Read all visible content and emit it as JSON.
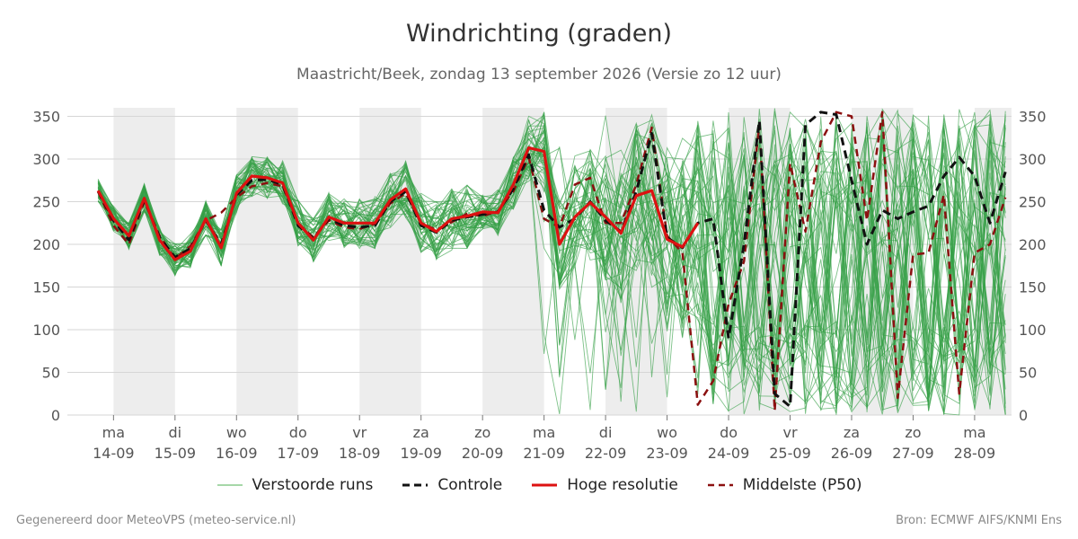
{
  "title": "Windrichting (graden)",
  "subtitle": "Maastricht/Beek, zondag 13 september 2026 (Versie zo 12 uur)",
  "footer": {
    "left": "Gegenereerd door MeteoVPS (meteo-service.nl)",
    "right": "Bron: ECMWF AIFS/KNMI Ens"
  },
  "legend": [
    {
      "key": "ens",
      "label": "Verstoorde runs",
      "color": "#4caf50",
      "style": "thin"
    },
    {
      "key": "control",
      "label": "Controle",
      "color": "#111111",
      "style": "dashed"
    },
    {
      "key": "hires",
      "label": "Hoge resolutie",
      "color": "#dd1111",
      "style": "solid"
    },
    {
      "key": "median",
      "label": "Middelste (P50)",
      "color": "#8b1010",
      "style": "dashed"
    }
  ],
  "chart_data": {
    "type": "line",
    "title": "Windrichting (graden)",
    "x_unit": "days since 14-09 00:00",
    "xlim": [
      -0.75,
      14.6
    ],
    "ylim": [
      0,
      360
    ],
    "yticks": [
      0,
      50,
      100,
      150,
      200,
      250,
      300,
      350
    ],
    "grid": true,
    "legend_position": "bottom",
    "x_ticks": [
      {
        "x": 0,
        "day": "ma",
        "date": "14-09"
      },
      {
        "x": 1,
        "day": "di",
        "date": "15-09"
      },
      {
        "x": 2,
        "day": "wo",
        "date": "16-09"
      },
      {
        "x": 3,
        "day": "do",
        "date": "17-09"
      },
      {
        "x": 4,
        "day": "vr",
        "date": "18-09"
      },
      {
        "x": 5,
        "day": "za",
        "date": "19-09"
      },
      {
        "x": 6,
        "day": "zo",
        "date": "20-09"
      },
      {
        "x": 7,
        "day": "ma",
        "date": "21-09"
      },
      {
        "x": 8,
        "day": "di",
        "date": "22-09"
      },
      {
        "x": 9,
        "day": "wo",
        "date": "23-09"
      },
      {
        "x": 10,
        "day": "do",
        "date": "24-09"
      },
      {
        "x": 11,
        "day": "vr",
        "date": "25-09"
      },
      {
        "x": 12,
        "day": "za",
        "date": "26-09"
      },
      {
        "x": 13,
        "day": "zo",
        "date": "27-09"
      },
      {
        "x": 14,
        "day": "ma",
        "date": "28-09"
      }
    ],
    "shaded_bands": [
      [
        0,
        1
      ],
      [
        2,
        3
      ],
      [
        4,
        5
      ],
      [
        6,
        7
      ],
      [
        8,
        9
      ],
      [
        10,
        11
      ],
      [
        12,
        13
      ],
      [
        14,
        14.6
      ]
    ],
    "series": [
      {
        "name": "Hoge resolutie",
        "color": "#dd1111",
        "style": "solid",
        "x": [
          -0.25,
          0,
          0.25,
          0.5,
          0.75,
          1,
          1.25,
          1.5,
          1.75,
          2,
          2.25,
          2.5,
          2.75,
          3,
          3.25,
          3.5,
          3.75,
          4,
          4.25,
          4.5,
          4.75,
          5,
          5.25,
          5.5,
          5.75,
          6,
          6.25,
          6.5,
          6.75,
          7,
          7.25,
          7.5,
          7.75,
          8,
          8.25,
          8.5,
          8.75,
          9,
          9.25,
          9.5
        ],
        "y": [
          263,
          230,
          210,
          254,
          205,
          182,
          192,
          230,
          196,
          260,
          280,
          278,
          272,
          225,
          205,
          232,
          225,
          225,
          225,
          252,
          265,
          225,
          215,
          230,
          233,
          238,
          237,
          270,
          313,
          309,
          200,
          232,
          249,
          232,
          213,
          257,
          263,
          206,
          197,
          225
        ]
      },
      {
        "name": "Controle",
        "color": "#111111",
        "style": "dashed",
        "x": [
          -0.25,
          0,
          0.25,
          0.5,
          0.75,
          1,
          1.25,
          1.5,
          1.75,
          2,
          2.25,
          2.5,
          2.75,
          3,
          3.25,
          3.5,
          3.75,
          4,
          4.25,
          4.5,
          4.75,
          5,
          5.25,
          5.5,
          5.75,
          6,
          6.25,
          6.5,
          6.75,
          7,
          7.25,
          7.5,
          7.75,
          8,
          8.25,
          8.5,
          8.75,
          9,
          9.25,
          9.5,
          9.75,
          10,
          10.25,
          10.5,
          10.75,
          11,
          11.25,
          11.5,
          11.75,
          12,
          12.25,
          12.5,
          12.75,
          13,
          13.25,
          13.5,
          13.75,
          14,
          14.25,
          14.5
        ],
        "y": [
          262,
          228,
          205,
          252,
          208,
          185,
          195,
          228,
          200,
          258,
          275,
          276,
          270,
          222,
          207,
          230,
          222,
          220,
          222,
          250,
          262,
          222,
          214,
          228,
          232,
          235,
          238,
          265,
          305,
          240,
          220,
          230,
          250,
          228,
          215,
          262,
          330,
          208,
          196,
          225,
          230,
          90,
          200,
          345,
          25,
          10,
          340,
          355,
          352,
          275,
          200,
          240,
          230,
          238,
          245,
          280,
          302,
          280,
          225,
          285
        ]
      },
      {
        "name": "Middelste (P50)",
        "color": "#8b1010",
        "style": "dashed",
        "x": [
          -0.25,
          0,
          0.25,
          0.5,
          0.75,
          1,
          1.25,
          1.5,
          1.75,
          2,
          2.25,
          2.5,
          2.75,
          3,
          3.25,
          3.5,
          3.75,
          4,
          4.25,
          4.5,
          4.75,
          5,
          5.25,
          5.5,
          5.75,
          6,
          6.25,
          6.5,
          6.75,
          7,
          7.25,
          7.5,
          7.75,
          8,
          8.25,
          8.5,
          8.75,
          9,
          9.25,
          9.5,
          9.75,
          10,
          10.25,
          10.5,
          10.75,
          11,
          11.25,
          11.5,
          11.75,
          12,
          12.25,
          12.5,
          12.75,
          13,
          13.25,
          13.5,
          13.75,
          14,
          14.25,
          14.5
        ],
        "y": [
          262,
          222,
          200,
          250,
          210,
          183,
          198,
          228,
          237,
          255,
          268,
          272,
          268,
          225,
          208,
          228,
          220,
          218,
          224,
          248,
          260,
          225,
          217,
          226,
          236,
          233,
          239,
          262,
          302,
          230,
          220,
          270,
          278,
          225,
          225,
          270,
          337,
          210,
          190,
          12,
          40,
          130,
          180,
          340,
          5,
          295,
          215,
          320,
          355,
          350,
          228,
          355,
          20,
          188,
          190,
          258,
          25,
          190,
          200,
          255
        ]
      }
    ]
  }
}
